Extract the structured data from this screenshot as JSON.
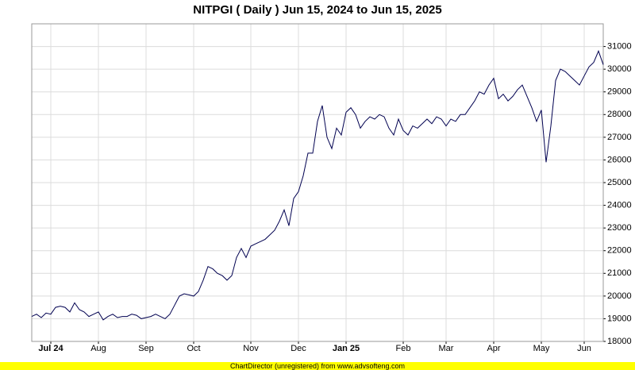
{
  "chart_data": {
    "type": "line",
    "title": "NITPGI ( Daily ) Jun 15, 2024 to Jun 15, 2025",
    "footer": "ChartDirector (unregistered) from www.advsofteng.com",
    "categories": [
      null,
      null,
      null,
      null,
      "Jul 24",
      null,
      null,
      null,
      null,
      null,
      null,
      null,
      null,
      null,
      "Aug",
      null,
      null,
      null,
      null,
      null,
      null,
      null,
      null,
      null,
      "Sep",
      null,
      null,
      null,
      null,
      null,
      null,
      null,
      null,
      null,
      "Oct",
      null,
      null,
      null,
      null,
      null,
      null,
      null,
      null,
      null,
      null,
      null,
      "Nov",
      null,
      null,
      null,
      null,
      null,
      null,
      null,
      null,
      null,
      "Dec",
      null,
      null,
      null,
      null,
      null,
      null,
      null,
      null,
      null,
      "Jan 25",
      null,
      null,
      null,
      null,
      null,
      null,
      null,
      null,
      null,
      null,
      null,
      "Feb",
      null,
      null,
      null,
      null,
      null,
      null,
      null,
      null,
      "Mar",
      null,
      null,
      null,
      null,
      null,
      null,
      null,
      null,
      null,
      "Apr",
      null,
      null,
      null,
      null,
      null,
      null,
      null,
      null,
      null,
      "May",
      null,
      null,
      null,
      null,
      null,
      null,
      null,
      null,
      "Jun",
      null,
      null,
      null,
      null
    ],
    "values": [
      19100,
      19200,
      19050,
      19250,
      19200,
      19500,
      19550,
      19500,
      19300,
      19700,
      19400,
      19300,
      19100,
      19200,
      19300,
      18950,
      19100,
      19200,
      19050,
      19100,
      19100,
      19200,
      19150,
      19000,
      19050,
      19100,
      19200,
      19100,
      19000,
      19200,
      19600,
      20000,
      20100,
      20050,
      20000,
      20200,
      20700,
      21300,
      21200,
      21000,
      20900,
      20700,
      20900,
      21700,
      22100,
      21700,
      22200,
      22300,
      22400,
      22500,
      22700,
      22900,
      23300,
      23800,
      23100,
      24300,
      24600,
      25300,
      26300,
      26300,
      27700,
      28400,
      27000,
      26500,
      27400,
      27100,
      28100,
      28300,
      28000,
      27400,
      27700,
      27900,
      27800,
      28000,
      27900,
      27400,
      27100,
      27800,
      27300,
      27100,
      27500,
      27400,
      27600,
      27800,
      27600,
      27900,
      27800,
      27500,
      27800,
      27700,
      28000,
      28000,
      28300,
      28600,
      29000,
      28900,
      29300,
      29600,
      28700,
      28900,
      28600,
      28800,
      29100,
      29300,
      28800,
      28300,
      27700,
      28200,
      25900,
      27500,
      29500,
      30000,
      29900,
      29700,
      29500,
      29300,
      29700,
      30100,
      30300,
      30800,
      30200
    ],
    "color": "#000050",
    "ylim": [
      18000,
      32000
    ],
    "yticks": [
      18000,
      19000,
      20000,
      21000,
      22000,
      23000,
      24000,
      25000,
      26000,
      27000,
      28000,
      29000,
      30000,
      31000
    ],
    "grid": true
  }
}
